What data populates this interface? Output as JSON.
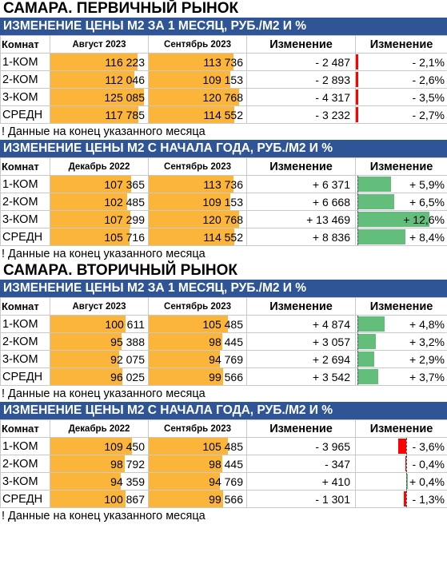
{
  "sections": [
    {
      "title": "САМАРА. ПЕРВИЧНЫЙ РЫНОК",
      "tables": [
        {
          "band": "ИЗМЕНЕНИЕ ЦЕНЫ М2 ЗА 1 МЕСЯЦ, РУБ./М2 И %",
          "headers": [
            "Комнат",
            "Август 2023",
            "Сентябрь 2023",
            "Изменение",
            "Изменение"
          ],
          "rows": [
            {
              "rooms": "1-КОМ",
              "v1": "116 223",
              "v2": "113 736",
              "delta": "- 2 487",
              "pct": "- 2,1%",
              "pct_value": -2.1
            },
            {
              "rooms": "2-КОМ",
              "v1": "112 046",
              "v2": "109 153",
              "delta": "- 2 893",
              "pct": "- 2,6%",
              "pct_value": -2.6
            },
            {
              "rooms": "3-КОМ",
              "v1": "125 085",
              "v2": "120 768",
              "delta": "- 4 317",
              "pct": "- 3,5%",
              "pct_value": -3.5
            },
            {
              "rooms": "СРЕДН",
              "v1": "117 785",
              "v2": "114 552",
              "delta": "- 3 232",
              "pct": "- 2,7%",
              "pct_value": -2.7
            }
          ],
          "note": "! Данные на конец указанного месяца"
        },
        {
          "band": "ИЗМЕНЕНИЕ ЦЕНЫ М2 С НАЧАЛА ГОДА, РУБ./М2 И %",
          "headers": [
            "Комнат",
            "Декабрь 2022",
            "Сентябрь 2023",
            "Изменение",
            "Изменение"
          ],
          "rows": [
            {
              "rooms": "1-КОМ",
              "v1": "107 365",
              "v2": "113 736",
              "delta": "+ 6 371",
              "pct": "+ 5,9%",
              "pct_value": 5.9
            },
            {
              "rooms": "2-КОМ",
              "v1": "102 485",
              "v2": "109 153",
              "delta": "+ 6 668",
              "pct": "+ 6,5%",
              "pct_value": 6.5
            },
            {
              "rooms": "3-КОМ",
              "v1": "107 299",
              "v2": "120 768",
              "delta": "+ 13 469",
              "pct": "+ 12,6%",
              "pct_value": 12.6
            },
            {
              "rooms": "СРЕДН",
              "v1": "105 716",
              "v2": "114 552",
              "delta": "+ 8 836",
              "pct": "+ 8,4%",
              "pct_value": 8.4
            }
          ],
          "note": "! Данные на конец указанного месяца"
        }
      ]
    },
    {
      "title": "САМАРА. ВТОРИЧНЫЙ РЫНОК",
      "tables": [
        {
          "band": "ИЗМЕНЕНИЕ ЦЕНЫ М2 ЗА 1 МЕСЯЦ, РУБ./М2 И %",
          "headers": [
            "Комнат",
            "Август 2023",
            "Сентябрь 2023",
            "Изменение",
            "Изменение"
          ],
          "rows": [
            {
              "rooms": "1-КОМ",
              "v1": "100 611",
              "v2": "105 485",
              "delta": "+ 4 874",
              "pct": "+ 4,8%",
              "pct_value": 4.8
            },
            {
              "rooms": "2-КОМ",
              "v1": "95 388",
              "v2": "98 445",
              "delta": "+ 3 057",
              "pct": "+ 3,2%",
              "pct_value": 3.2
            },
            {
              "rooms": "3-КОМ",
              "v1": "92 075",
              "v2": "94 769",
              "delta": "+ 2 694",
              "pct": "+ 2,9%",
              "pct_value": 2.9
            },
            {
              "rooms": "СРЕДН",
              "v1": "96 025",
              "v2": "99 566",
              "delta": "+ 3 542",
              "pct": "+ 3,7%",
              "pct_value": 3.7
            }
          ],
          "note": "! Данные на конец указанного месяца"
        },
        {
          "band": "ИЗМЕНЕНИЕ ЦЕНЫ М2 С НАЧАЛА ГОДА, РУБ./М2 И %",
          "headers": [
            "Комнат",
            "Декабрь 2022",
            "Сентябрь 2023",
            "Изменение",
            "Изменение"
          ],
          "rows": [
            {
              "rooms": "1-КОМ",
              "v1": "109 450",
              "v2": "105 485",
              "delta": "- 3 965",
              "pct": "- 3,6%",
              "pct_value": -3.6
            },
            {
              "rooms": "2-КОМ",
              "v1": "98 792",
              "v2": "98 445",
              "delta": "- 347",
              "pct": "- 0,4%",
              "pct_value": -0.4
            },
            {
              "rooms": "3-КОМ",
              "v1": "94 359",
              "v2": "94 769",
              "delta": "+ 410",
              "pct": "+ 0,4%",
              "pct_value": 0.4
            },
            {
              "rooms": "СРЕДН",
              "v1": "100 867",
              "v2": "99 566",
              "delta": "- 1 301",
              "pct": "- 1,3%",
              "pct_value": -1.3
            }
          ],
          "note": "! Данные на конец указанного месяца"
        }
      ]
    }
  ],
  "colors": {
    "band": "#2F5597",
    "price_bar": "#FBB53B",
    "positive_bar": "#63BE7B",
    "negative_bar": "#FF0000"
  }
}
